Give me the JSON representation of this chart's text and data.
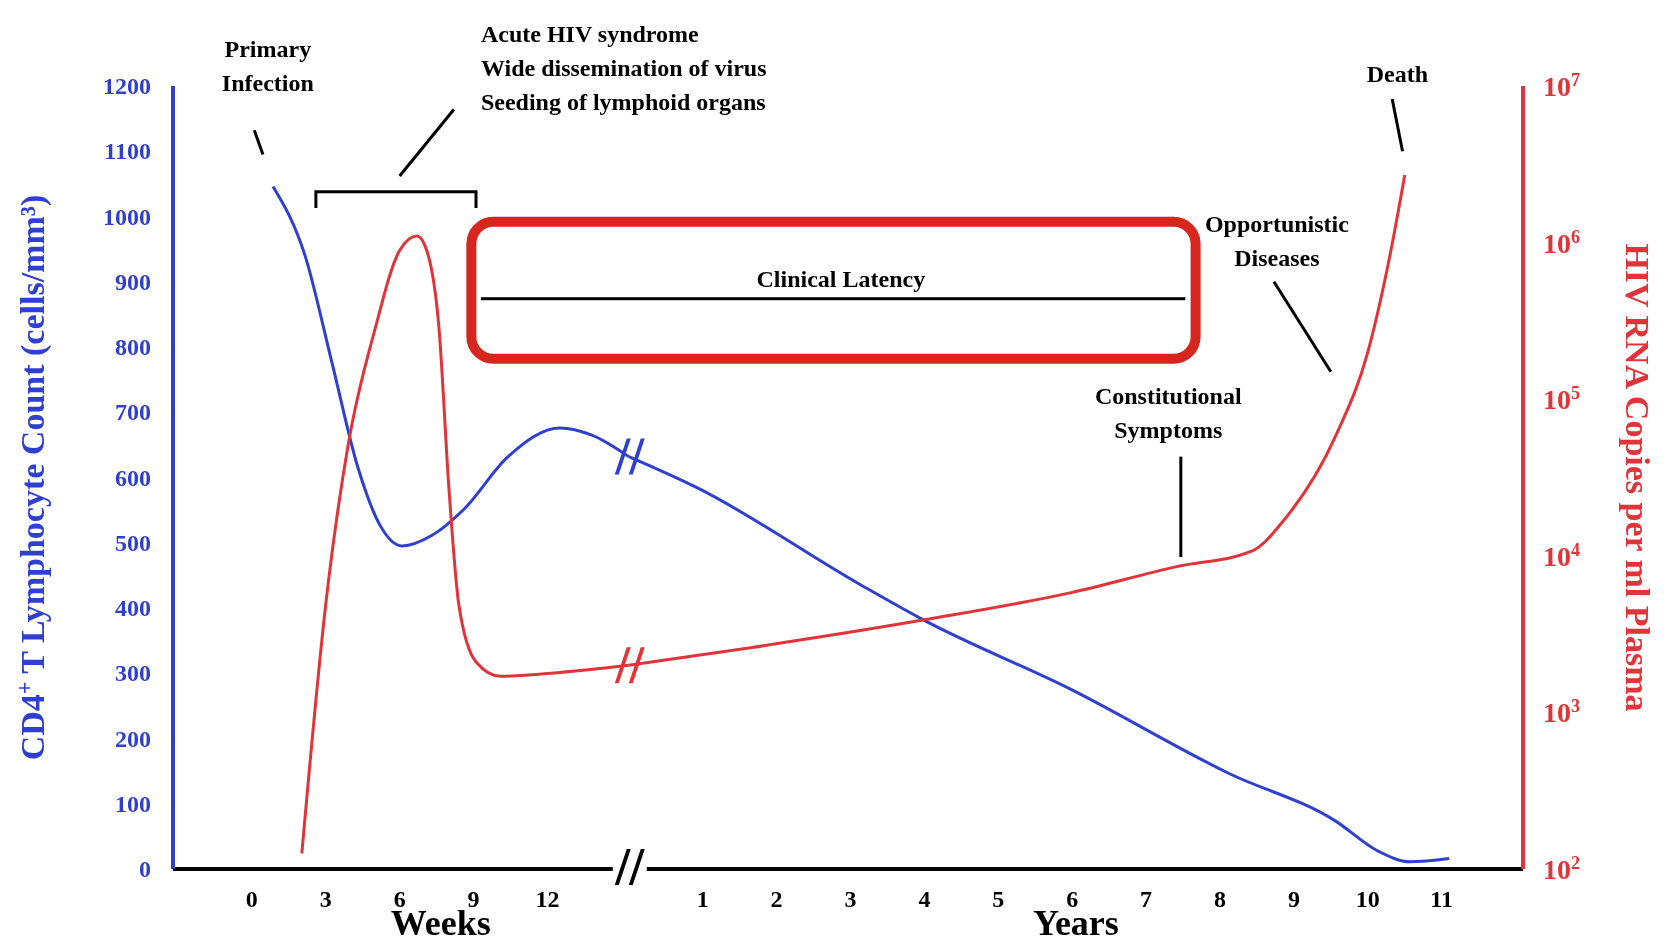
{
  "chart_data": [
    {
      "type": "line",
      "xlabel": "Weeks",
      "ylabel": "CD4$^{+}$ T Lymphocyte Count (cells/mm³)",
      "xlim": [
        -3.2,
        15.3
      ],
      "xticks": [
        0,
        3,
        6,
        9,
        12
      ],
      "ylim": [
        0,
        1200
      ],
      "yticks": [
        0,
        100,
        200,
        300,
        400,
        500,
        600,
        700,
        800,
        900,
        1000,
        1100,
        1200
      ],
      "y2lim": [
        100,
        10000000
      ],
      "log": "y2",
      "grid": false,
      "marker": "none",
      "line_style": "solid",
      "series": [
        {
          "color": "#2f3fd0",
          "x": [
            0.86,
            2.16,
            3.24,
            4.3,
            5.2,
            6.1,
            7.3,
            8.6,
            10.4,
            12.5,
            13.8,
            15.3
          ],
          "values": [
            1046,
            940,
            778,
            616,
            527,
            495,
            511,
            551,
            632,
            676,
            665,
            632
          ]
        },
        {
          "color": "#e0343a",
          "axis": "y2",
          "x": [
            2.03,
            3.0,
            3.9,
            5.0,
            6.0,
            6.7,
            7.1,
            7.6,
            8.0,
            8.4,
            9.1,
            10.1,
            12.5,
            15.3
          ],
          "values": [
            126,
            4900,
            50000,
            280000,
            890000,
            1100000,
            890000,
            280000,
            27000,
            4900,
            2100,
            1700,
            1800,
            2000
          ]
        }
      ],
      "annotations": [
        "Primary\nInfection",
        "Acute HIV syndrome\nWide dissemination of virus\nSeeding of lymphoid organs"
      ]
    },
    {
      "type": "line",
      "xlabel": "Years",
      "y2label": "HIV RNA Copies per ml Plasma",
      "xlim": [
        0,
        12.1
      ],
      "xticks": [
        1,
        2,
        3,
        4,
        5,
        6,
        7,
        8,
        9,
        10,
        11
      ],
      "ylim": [
        0,
        1200
      ],
      "y2lim": [
        100,
        10000000
      ],
      "y2ticks": [
        {
          "value": 100,
          "label": "10$^{2}$"
        },
        {
          "value": 1000,
          "label": "10$^{3}$"
        },
        {
          "value": 10000,
          "label": "10$^{4}$"
        },
        {
          "value": 100000,
          "label": "10$^{5}$"
        },
        {
          "value": 1000000,
          "label": "10$^{6}$"
        },
        {
          "value": 10000000,
          "label": "10$^{7}$"
        }
      ],
      "log": "y2",
      "grid": false,
      "marker": "none",
      "line_style": "solid",
      "series": [
        {
          "color": "#2f3fd0",
          "x": [
            0,
            0.93,
            3.1,
            4.0,
            5.97,
            8.13,
            9.57,
            10.13,
            10.57,
            11.1
          ],
          "values": [
            632,
            584,
            438,
            381,
            276,
            146,
            73,
            28,
            11,
            16
          ]
        },
        {
          "color": "#e0343a",
          "axis": "y2",
          "x": [
            0,
            1.67,
            4.0,
            5.97,
            7.4,
            8.43,
            8.87,
            9.57,
            10.0,
            10.3,
            10.5
          ],
          "values": [
            2000,
            2600,
            3900,
            5800,
            8500,
            10700,
            17000,
            59000,
            200000,
            830000,
            2700000
          ]
        }
      ],
      "annotations": [
        "Clinical Latency",
        "Opportunistic\nDiseases",
        "Constitutional\nSymptoms",
        "Death"
      ]
    }
  ]
}
